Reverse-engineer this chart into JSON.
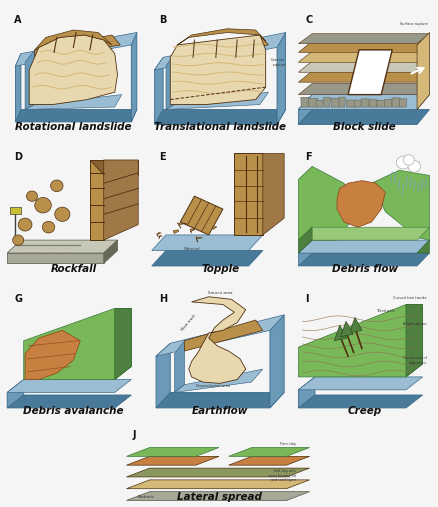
{
  "background_color": "#f5f5f5",
  "panels": [
    {
      "id": "A",
      "label": "Rotational landslide"
    },
    {
      "id": "B",
      "label": "Translational landslide"
    },
    {
      "id": "C",
      "label": "Block slide"
    },
    {
      "id": "D",
      "label": "Rockfall"
    },
    {
      "id": "E",
      "label": "Topple"
    },
    {
      "id": "F",
      "label": "Debris flow"
    },
    {
      "id": "G",
      "label": "Debris avalanche"
    },
    {
      "id": "H",
      "label": "Earthflow"
    },
    {
      "id": "I",
      "label": "Creep"
    },
    {
      "id": "J",
      "label": "Lateral spread"
    }
  ],
  "colors": {
    "blue_top": "#9bbdd4",
    "blue_side": "#6a9ab8",
    "blue_front": "#4a7a9a",
    "blue_dark": "#3a6a8a",
    "soil_cream": "#e8d8b0",
    "soil_tan": "#d4b878",
    "soil_brown": "#b8904a",
    "soil_dark": "#8a6030",
    "rock_brown": "#a07848",
    "rock_gray": "#989888",
    "rock_dark": "#686858",
    "grass_green": "#78b858",
    "grass_dark": "#508040",
    "grass_light": "#98c878",
    "debris_orange": "#c88040",
    "debris_brown": "#905020",
    "crack": "#503010",
    "white": "#ffffff",
    "black": "#000000",
    "gray_light": "#c8c8b8",
    "gray_plat": "#a8a898"
  },
  "label_fontsize": 7.5,
  "letter_fontsize": 7,
  "fig_width": 4.38,
  "fig_height": 5.07,
  "dpi": 100
}
